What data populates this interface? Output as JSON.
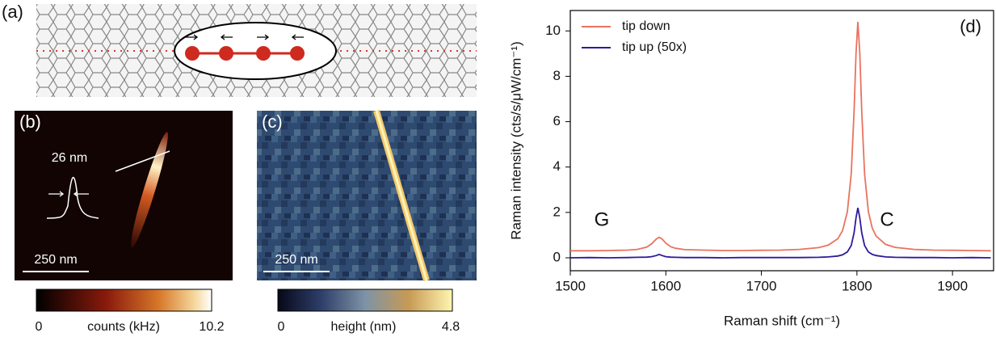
{
  "panels": {
    "a": {
      "label": "(a)"
    },
    "b": {
      "label": "(b)",
      "profile_label": "26 nm",
      "scalebar": "250 nm",
      "colorbar": {
        "label": "counts (kHz)",
        "ticks": [
          0,
          10.2
        ]
      }
    },
    "c": {
      "label": "(c)",
      "scalebar": "250 nm",
      "colorbar": {
        "label": "height (nm)",
        "ticks": [
          0,
          4.8
        ]
      }
    }
  },
  "chart_data": {
    "type": "line",
    "panel_label": "(d)",
    "xlabel": "Raman shift (cm⁻¹)",
    "ylabel": "Raman intensity (cts/s/μW/cm⁻¹)",
    "annotations": [
      "G",
      "C"
    ],
    "x": [
      1500,
      1520,
      1540,
      1560,
      1570,
      1580,
      1585,
      1590,
      1593,
      1596,
      1600,
      1605,
      1610,
      1620,
      1640,
      1660,
      1680,
      1700,
      1720,
      1740,
      1760,
      1770,
      1780,
      1785,
      1790,
      1794,
      1797,
      1799,
      1801,
      1803,
      1805,
      1808,
      1812,
      1816,
      1820,
      1830,
      1840,
      1860,
      1880,
      1900,
      1920,
      1940
    ],
    "series": [
      {
        "name": "tip down",
        "color": "#e8735f",
        "values": [
          0.31,
          0.31,
          0.32,
          0.34,
          0.37,
          0.47,
          0.61,
          0.83,
          0.9,
          0.83,
          0.64,
          0.49,
          0.42,
          0.36,
          0.34,
          0.32,
          0.32,
          0.33,
          0.34,
          0.37,
          0.45,
          0.56,
          0.84,
          1.2,
          2.03,
          3.71,
          6.46,
          9.0,
          10.4,
          9.0,
          6.46,
          3.71,
          2.03,
          1.31,
          0.96,
          0.59,
          0.46,
          0.37,
          0.34,
          0.33,
          0.32,
          0.31
        ]
      },
      {
        "name": "tip up (50x)",
        "color": "#2e1a9a",
        "values": [
          0.0,
          0.01,
          0.0,
          0.01,
          0.02,
          0.03,
          0.05,
          0.1,
          0.15,
          0.1,
          0.05,
          0.03,
          0.02,
          0.01,
          0.01,
          0.0,
          0.01,
          0.01,
          0.01,
          0.01,
          0.02,
          0.04,
          0.08,
          0.13,
          0.26,
          0.54,
          1.1,
          1.76,
          2.2,
          1.76,
          1.1,
          0.54,
          0.26,
          0.15,
          0.1,
          0.04,
          0.02,
          0.01,
          0.01,
          0.0,
          0.01,
          0.0
        ]
      }
    ],
    "xlim": [
      1500,
      1943
    ],
    "ylim": [
      -0.57,
      10.9
    ],
    "xticks": [
      1500,
      1600,
      1700,
      1800,
      1900
    ],
    "yticks": [
      0,
      2,
      4,
      6,
      8,
      10
    ],
    "legend": "upper left"
  }
}
